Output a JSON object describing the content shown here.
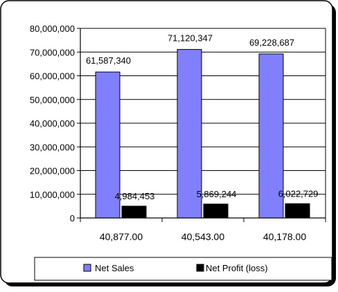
{
  "chart_data": {
    "type": "bar",
    "title": "",
    "xlabel": "",
    "ylabel": "",
    "categories": [
      "40,877.00",
      "40,543.00",
      "40,178.00"
    ],
    "series": [
      {
        "name": "Net Sales",
        "color": "#8080FF",
        "values": [
          61587340,
          71120347,
          69228687
        ],
        "labels": [
          "61,587,340",
          "71,120,347",
          "69,228,687"
        ]
      },
      {
        "name": "Net Profit (loss)",
        "color": "#000000",
        "values": [
          4984453,
          5869244,
          6022729
        ],
        "labels": [
          "4,984,453",
          "5,869,244",
          "6,022,729"
        ]
      }
    ],
    "ylim": [
      0,
      80000000
    ],
    "yticks": [
      0,
      10000000,
      20000000,
      30000000,
      40000000,
      50000000,
      60000000,
      70000000,
      80000000
    ],
    "ytick_labels": [
      "0",
      "10,000,000",
      "20,000,000",
      "30,000,000",
      "40,000,000",
      "50,000,000",
      "60,000,000",
      "70,000,000",
      "80,000,000"
    ],
    "grid": true,
    "legend": "bottom"
  }
}
